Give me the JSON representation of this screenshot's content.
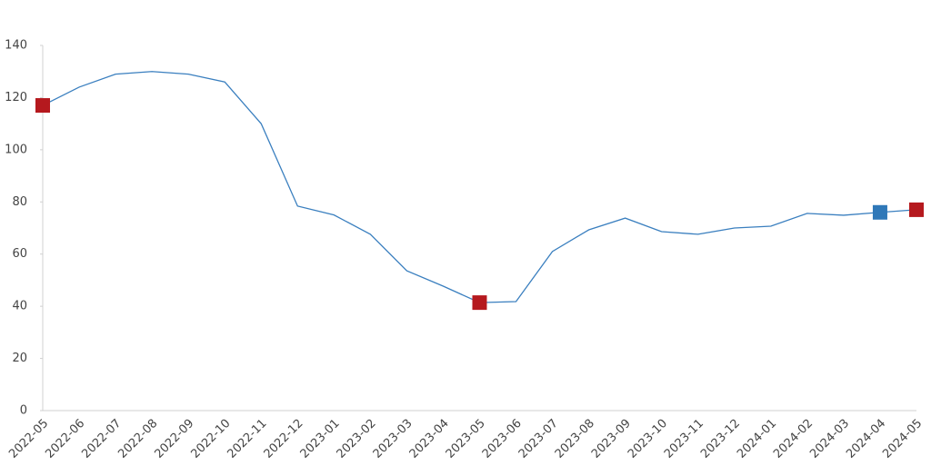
{
  "chart_data": {
    "type": "line",
    "categories": [
      "2022-05",
      "2022-06",
      "2022-07",
      "2022-08",
      "2022-09",
      "2022-10",
      "2022-11",
      "2022-12",
      "2023-01",
      "2023-02",
      "2023-03",
      "2023-04",
      "2023-05",
      "2023-06",
      "2023-07",
      "2023-08",
      "2023-09",
      "2023-10",
      "2023-11",
      "2023-12",
      "2024-01",
      "2024-02",
      "2024-03",
      "2024-04",
      "2024-05"
    ],
    "series": [
      {
        "color": "#3a7fbf",
        "values": [
          117,
          124,
          129,
          130,
          129,
          126,
          110,
          78.4,
          75,
          67.6,
          53.6,
          47.7,
          41.4,
          41.8,
          61,
          69.3,
          73.8,
          68.6,
          67.6,
          70,
          70.7,
          75.6,
          74.9,
          76,
          77
        ]
      }
    ],
    "markers": [
      {
        "category": "2022-05",
        "color": "#b5191e"
      },
      {
        "category": "2023-05",
        "color": "#b5191e"
      },
      {
        "category": "2024-04",
        "color": "#2f78b8"
      },
      {
        "category": "2024-05",
        "color": "#b5191e"
      }
    ],
    "ylim": [
      0,
      140
    ],
    "yticks": [
      0,
      20,
      40,
      60,
      80,
      100,
      120,
      140
    ],
    "grid": false
  }
}
